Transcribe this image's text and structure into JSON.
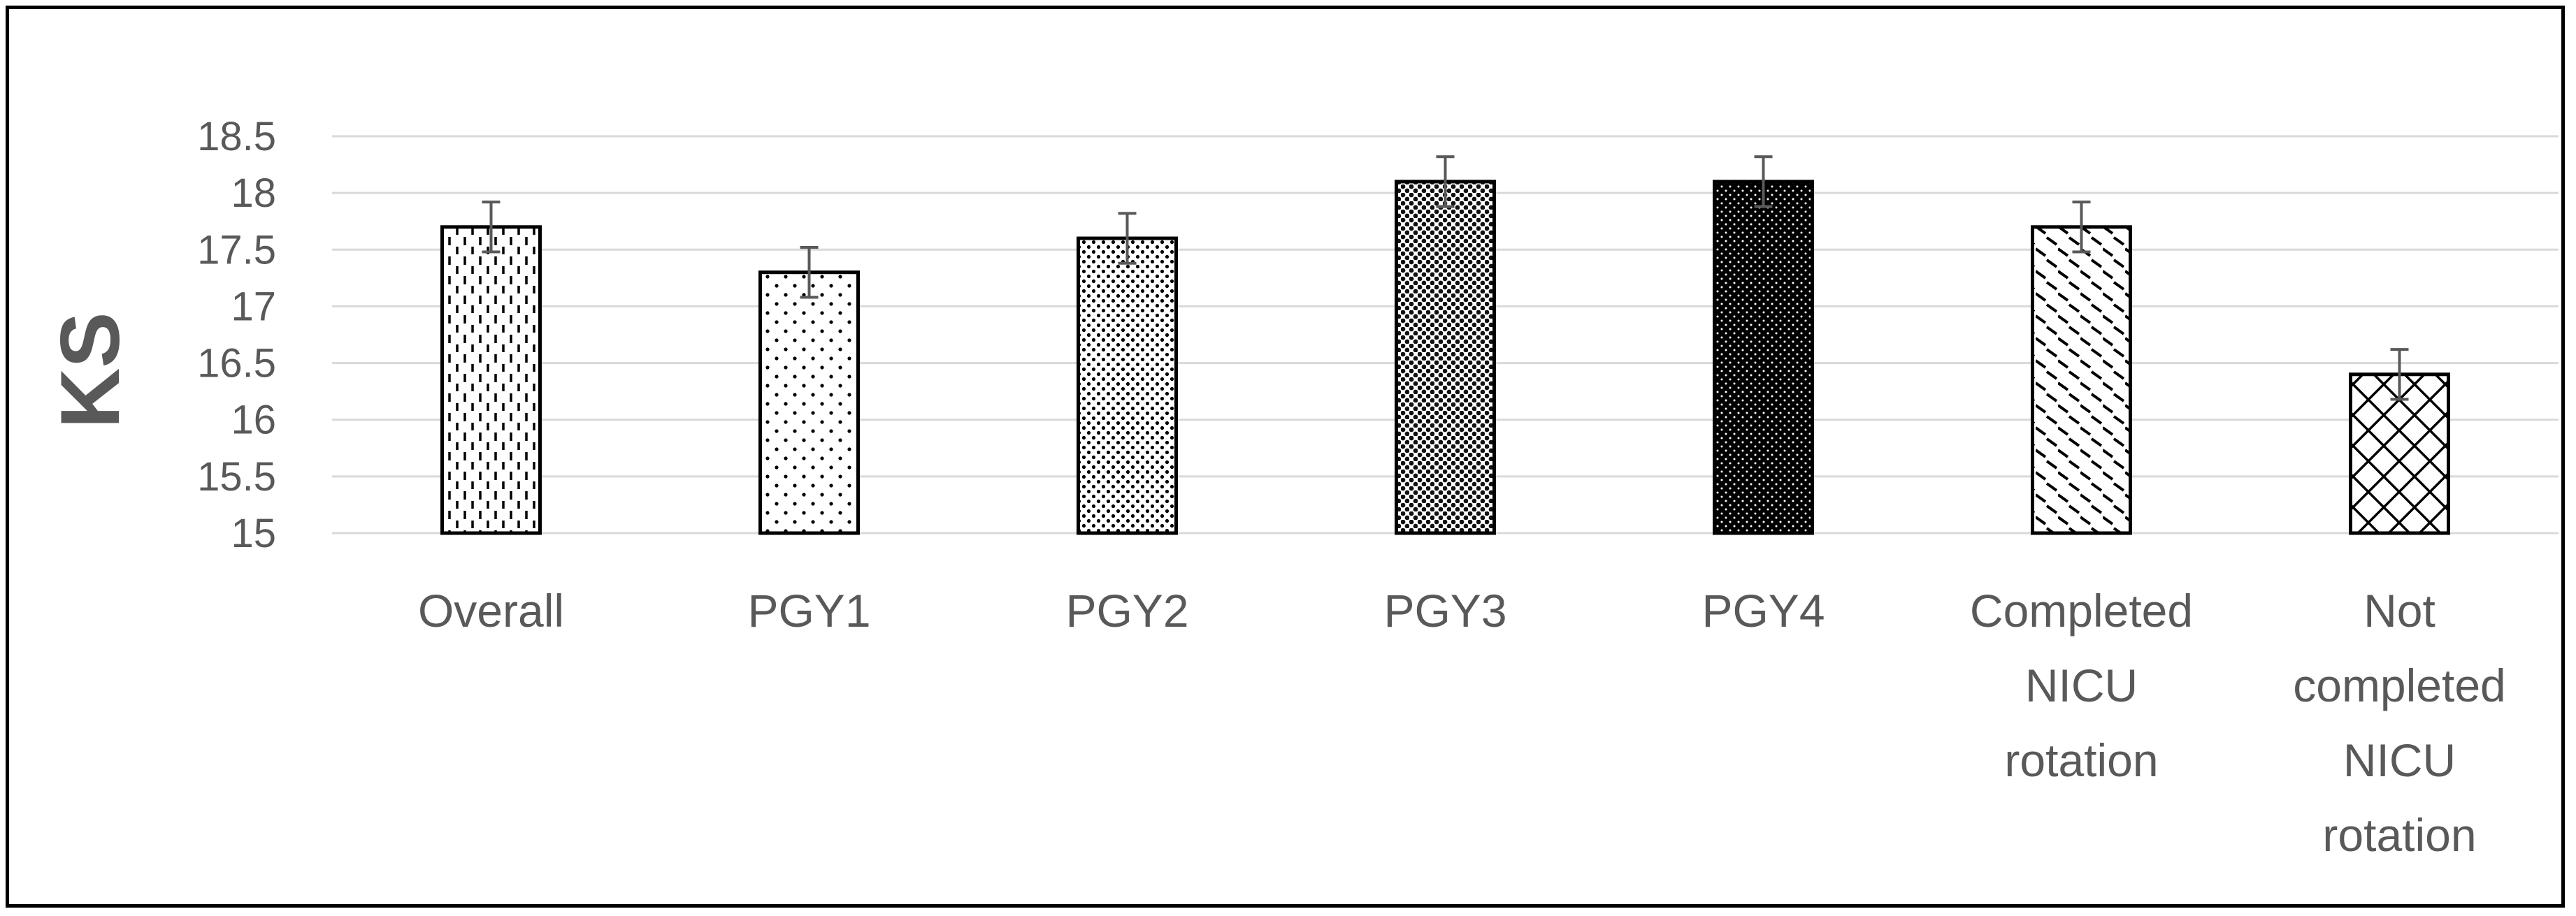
{
  "chart_data": {
    "type": "bar",
    "title": "",
    "xlabel": "",
    "ylabel": "KS",
    "ylim": [
      15,
      18.5
    ],
    "yticks": [
      "15",
      "15.5",
      "16",
      "16.5",
      "17",
      "17.5",
      "18",
      "18.5"
    ],
    "grid": true,
    "categories": [
      [
        "Overall"
      ],
      [
        "PGY1"
      ],
      [
        "PGY2"
      ],
      [
        "PGY3"
      ],
      [
        "PGY4"
      ],
      [
        "Completed",
        "NICU",
        "rotation"
      ],
      [
        "Not",
        "completed",
        "NICU",
        "rotation"
      ]
    ],
    "values": [
      17.7,
      17.3,
      17.6,
      18.1,
      18.1,
      17.7,
      16.4
    ],
    "error": [
      0.22,
      0.22,
      0.22,
      0.22,
      0.22,
      0.22,
      0.22
    ],
    "patterns": [
      "vertical-dashes",
      "sparse-dots",
      "medium-dots",
      "dense-dots",
      "dark-dots",
      "diagonal-dashes",
      "crosshatch"
    ],
    "colors": {
      "bar_stroke": "#000000",
      "gridline": "#d9d9d9",
      "text": "#595959",
      "error_bar": "#595959"
    }
  }
}
